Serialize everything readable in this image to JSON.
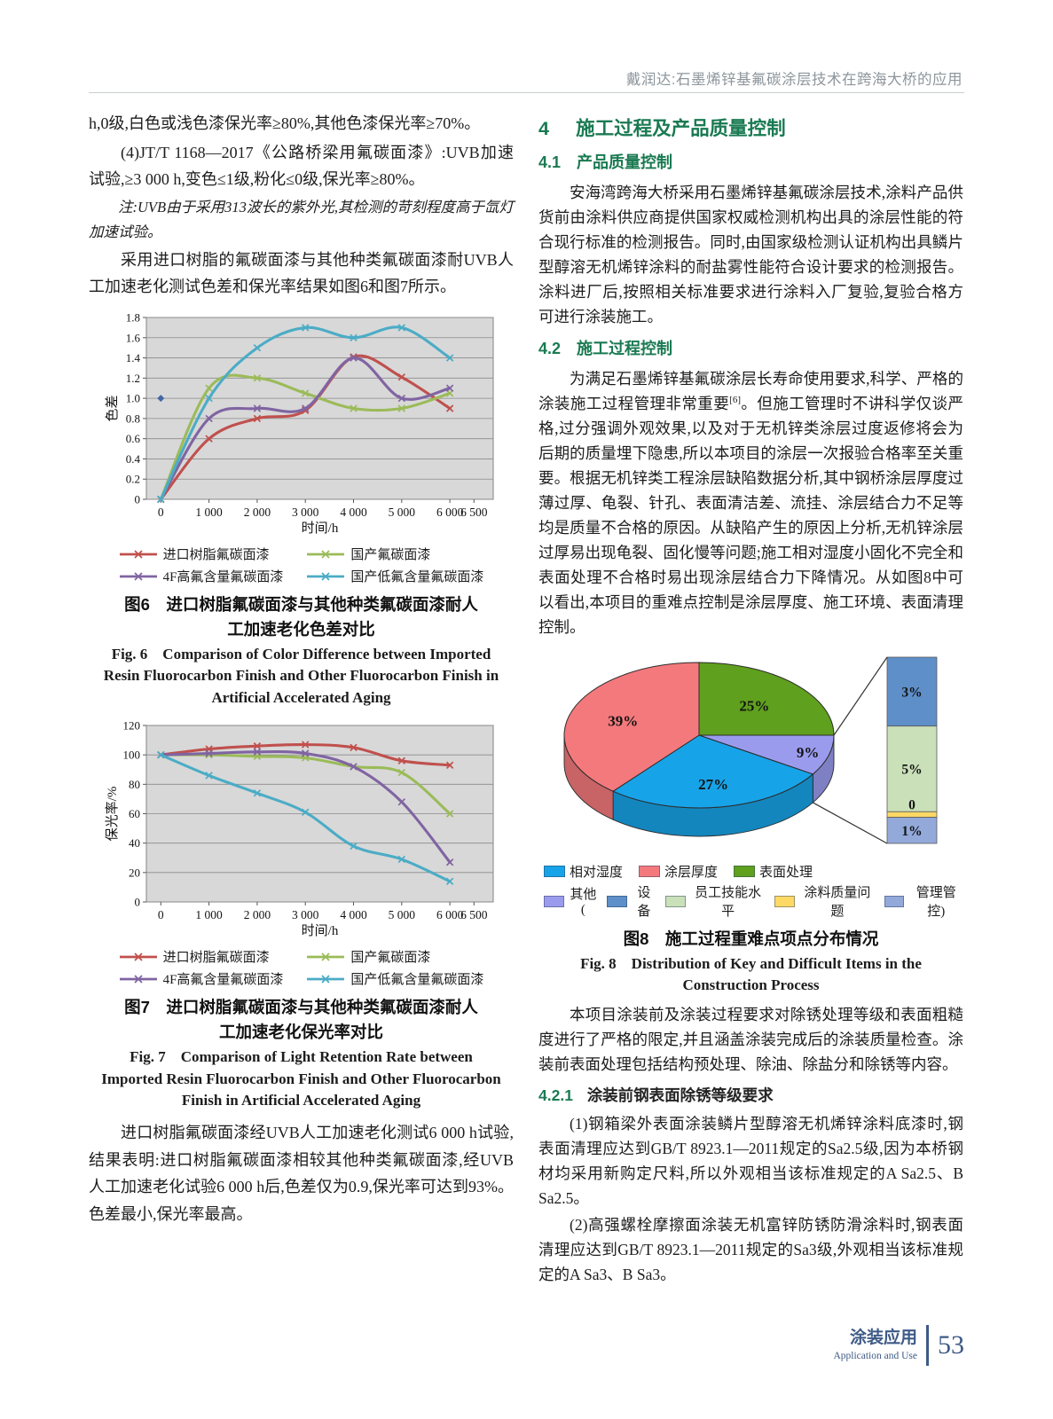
{
  "header": {
    "running_title": "戴润达:石墨烯锌基氟碳涂层技术在跨海大桥的应用"
  },
  "left_column": {
    "para1": "h,0级,白色或浅色漆保光率≥80%,其他色漆保光率≥70%。",
    "para2": "(4)JT/T 1168—2017《公路桥梁用氟碳面漆》:UVB加速试验,≥3 000 h,变色≤1级,粉化≤0级,保光率≥80%。",
    "note": "注:UVB由于采用313波长的紫外光,其检测的苛刻程度高于氙灯加速试验。",
    "para3": "采用进口树脂的氟碳面漆与其他种类氟碳面漆耐UVB人工加速老化测试色差和保光率结果如图6和图7所示。",
    "para4": "进口树脂氟碳面漆经UVB人工加速老化测试6 000 h试验,结果表明:进口树脂氟碳面漆相较其他种类氟碳面漆,经UVB人工加速老化试验6 000 h后,色差仅为0.9,保光率可达到93%。色差最小,保光率最高。"
  },
  "right_column": {
    "h1_num": "4",
    "h1_title": "施工过程及产品质量控制",
    "h2a_num": "4.1",
    "h2a_title": "产品质量控制",
    "para_41": "安海湾跨海大桥采用石墨烯锌基氟碳涂层技术,涂料产品供货前由涂料供应商提供国家权威检测机构出具的涂层性能的符合现行标准的检测报告。同时,由国家级检测认证机构出具鳞片型醇溶无机烯锌涂料的耐盐雾性能符合设计要求的检测报告。涂料进厂后,按照相关标准要求进行涂料入厂复验,复验合格方可进行涂装施工。",
    "h2b_num": "4.2",
    "h2b_title": "施工过程控制",
    "para_42_a": "为满足石墨烯锌基氟碳涂层长寿命使用要求,科学、严格的涂装施工过程管理非常重要",
    "para_42_sup": "[6]",
    "para_42_b": "。但施工管理时不讲科学仅谈严格,过分强调外观效果,以及对于无机锌类涂层过度返修将会为后期的质量埋下隐患,所以本项目的涂层一次报验合格率至关重要。根据无机锌类工程涂层缺陷数据分析,其中钢桥涂层厚度过薄过厚、龟裂、针孔、表面清洁差、流挂、涂层结合力不足等均是质量不合格的原因。从缺陷产生的原因上分析,无机锌涂层过厚易出现龟裂、固化慢等问题;施工相对湿度小固化不完全和表面处理不合格时易出现涂层结合力下降情况。从如图8中可以看出,本项目的重难点控制是涂层厚度、施工环境、表面清理控制。",
    "para_after_fig8": "本项目涂装前及涂装过程要求对除锈处理等级和表面粗糙度进行了严格的限定,并且涵盖涂装完成后的涂装质量检查。涂装前表面处理包括结构预处理、除油、除盐分和除锈等内容。",
    "h3_num": "4.2.1",
    "h3_title": "涂装前钢表面除锈等级要求",
    "para_421_1": "(1)钢箱梁外表面涂装鳞片型醇溶无机烯锌涂料底漆时,钢表面清理应达到GB/T 8923.1—2011规定的Sa2.5级,因为本桥钢材均采用新购定尺料,所以外观相当该标准规定的A Sa2.5、B Sa2.5。",
    "para_421_2": "(2)高强螺栓摩擦面涂装无机富锌防锈防滑涂料时,钢表面清理应达到GB/T 8923.1—2011规定的Sa3级,外观相当该标准规定的A Sa3、B Sa3。"
  },
  "footer": {
    "label_cn": "涂装应用",
    "label_en": "Application and Use",
    "page": "53"
  },
  "chart_data": [
    {
      "id": "fig6",
      "type": "line",
      "title_cn": "图6　进口树脂氟碳面漆与其他种类氟碳面漆耐人工加速老化色差对比",
      "title_en": "Fig. 6　Comparison of Color Difference between Imported Resin Fluorocarbon Finish and Other Fluorocarbon Finish in Artificial Accelerated Aging",
      "xlabel": "时间/h",
      "ylabel": "色差",
      "xlim": [
        -300,
        6900
      ],
      "ylim": [
        0,
        1.8
      ],
      "x_ticks": [
        {
          "v": 0,
          "label": "0"
        },
        {
          "v": 1000,
          "label": "1 000"
        },
        {
          "v": 2000,
          "label": "2 000"
        },
        {
          "v": 3000,
          "label": "3 000"
        },
        {
          "v": 4000,
          "label": "4 000"
        },
        {
          "v": 5000,
          "label": "5 000"
        },
        {
          "v": 6000,
          "label": "6 000"
        },
        {
          "v": 6500,
          "label": "6 500"
        }
      ],
      "y_ticks": [
        {
          "v": 0,
          "label": "0"
        },
        {
          "v": 0.2,
          "label": "0.2"
        },
        {
          "v": 0.4,
          "label": "0.4"
        },
        {
          "v": 0.6,
          "label": "0.6"
        },
        {
          "v": 0.8,
          "label": "0.8"
        },
        {
          "v": 1.0,
          "label": "1.0"
        },
        {
          "v": 1.2,
          "label": "1.2"
        },
        {
          "v": 1.4,
          "label": "1.4"
        },
        {
          "v": 1.6,
          "label": "1.6"
        },
        {
          "v": 1.8,
          "label": "1.8"
        }
      ],
      "x": [
        0,
        1000,
        2000,
        3000,
        4000,
        5000,
        6000
      ],
      "series": [
        {
          "name": "进口树脂氟碳面漆",
          "color": "#C0504D",
          "values": [
            0,
            0.6,
            0.8,
            0.88,
            1.41,
            1.21,
            0.9
          ]
        },
        {
          "name": "国产氟碳面漆",
          "color": "#9BBB59",
          "values": [
            0,
            1.1,
            1.2,
            1.05,
            0.9,
            0.9,
            1.05
          ]
        },
        {
          "name": "4F高氟含量氟碳面漆",
          "color": "#8064A2",
          "values": [
            0,
            0.8,
            0.9,
            0.9,
            1.4,
            1.0,
            1.1
          ]
        },
        {
          "name": "国产低氟含量氟碳面漆",
          "color": "#4BACC6",
          "values": [
            0,
            1.0,
            1.5,
            1.7,
            1.6,
            1.7,
            1.4
          ]
        }
      ],
      "stray_point": {
        "x": 0,
        "y": 1.0,
        "color": "#4467A3"
      }
    },
    {
      "id": "fig7",
      "type": "line",
      "title_cn": "图7　进口树脂氟碳面漆与其他种类氟碳面漆耐人工加速老化保光率对比",
      "title_en": "Fig. 7　Comparison of Light Retention Rate between Imported Resin Fluorocarbon Finish and Other Fluorocarbon Finish in Artificial Accelerated Aging",
      "xlabel": "时间/h",
      "ylabel": "保光率/%",
      "xlim": [
        -300,
        6900
      ],
      "ylim": [
        0,
        120
      ],
      "x_ticks": [
        {
          "v": 0,
          "label": "0"
        },
        {
          "v": 1000,
          "label": "1 000"
        },
        {
          "v": 2000,
          "label": "2 000"
        },
        {
          "v": 3000,
          "label": "3 000"
        },
        {
          "v": 4000,
          "label": "4 000"
        },
        {
          "v": 5000,
          "label": "5 000"
        },
        {
          "v": 6000,
          "label": "6 000"
        },
        {
          "v": 6500,
          "label": "6 500"
        }
      ],
      "y_ticks": [
        {
          "v": 0,
          "label": "0"
        },
        {
          "v": 20,
          "label": "20"
        },
        {
          "v": 40,
          "label": "40"
        },
        {
          "v": 60,
          "label": "60"
        },
        {
          "v": 80,
          "label": "80"
        },
        {
          "v": 100,
          "label": "100"
        },
        {
          "v": 120,
          "label": "120"
        }
      ],
      "x": [
        0,
        1000,
        2000,
        3000,
        4000,
        5000,
        6000
      ],
      "series": [
        {
          "name": "进口树脂氟碳面漆",
          "color": "#C0504D",
          "values": [
            100,
            104,
            106,
            107,
            105,
            96,
            93
          ]
        },
        {
          "name": "国产氟碳面漆",
          "color": "#9BBB59",
          "values": [
            100,
            100,
            99,
            98,
            92,
            88,
            60
          ]
        },
        {
          "name": "4F高氟含量氟碳面漆",
          "color": "#8064A2",
          "values": [
            100,
            101,
            102,
            101,
            92,
            68,
            27
          ]
        },
        {
          "name": "国产低氟含量氟碳面漆",
          "color": "#4BACC6",
          "values": [
            100,
            86,
            74,
            61,
            38,
            29,
            14
          ]
        }
      ]
    },
    {
      "id": "fig8",
      "type": "pie3d",
      "title_cn": "图8　施工过程重难点项点分布情况",
      "title_en": "Fig. 8　Distribution of Key and Difficult Items in the Construction Process",
      "slices": [
        {
          "name": "表面处理",
          "pct": 25,
          "color": "#5FA01E",
          "label": "25%"
        },
        {
          "name": "其他",
          "pct": 9,
          "color": "#9B9BEE",
          "label": "9%"
        },
        {
          "name": "相对湿度",
          "pct": 27,
          "color": "#17A3E8",
          "label": "27%"
        },
        {
          "name": "涂层厚度",
          "pct": 39,
          "color": "#F4797C",
          "label": "39%"
        }
      ],
      "breakout": [
        {
          "name": "设备",
          "color": "#5E8FC9",
          "label": "3%",
          "frac": 0.37
        },
        {
          "name": "员工技能水平",
          "color": "#C9E0B9",
          "label": "5%",
          "frac": 0.46
        },
        {
          "name": "涂料质量问题",
          "color": "#FFD966",
          "label": "0",
          "frac": 0.03
        },
        {
          "name": "管理管控",
          "color": "#92A9DA",
          "label": "1%",
          "frac": 0.14
        }
      ],
      "legend_row1": [
        {
          "label": "相对湿度",
          "color": "#17A3E8"
        },
        {
          "label": "涂层厚度",
          "color": "#F4797C"
        },
        {
          "label": "表面处理",
          "color": "#5FA01E"
        }
      ],
      "legend_row2": [
        {
          "label": "其他(",
          "color": "#9B9BEE"
        },
        {
          "label": "设备",
          "color": "#5E8FC9"
        },
        {
          "label": "员工技能水平",
          "color": "#C9E0B9"
        },
        {
          "label": "涂料质量问题",
          "color": "#FFD966"
        },
        {
          "label": "管理管控)",
          "color": "#92A9DA"
        }
      ]
    }
  ]
}
